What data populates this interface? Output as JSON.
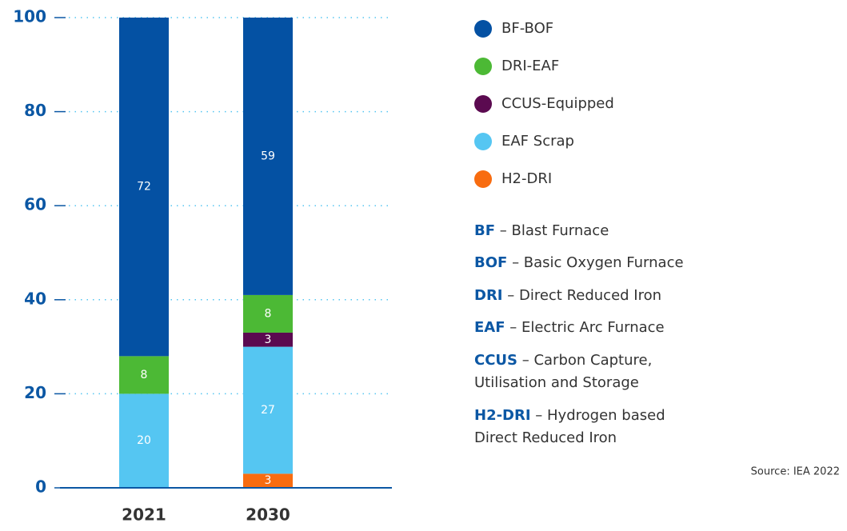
{
  "chart_data": {
    "type": "stacked_bar",
    "categories": [
      "2021",
      "2030"
    ],
    "series": [
      {
        "name": "BF-BOF",
        "color": "#0451a3",
        "values": [
          72,
          59
        ]
      },
      {
        "name": "DRI-EAF",
        "color": "#4cb935",
        "values": [
          8,
          8
        ]
      },
      {
        "name": "CCUS-Equipped",
        "color": "#5b0a50",
        "values": [
          0,
          3
        ]
      },
      {
        "name": "EAF Scrap",
        "color": "#55c6f2",
        "values": [
          20,
          27
        ]
      },
      {
        "name": "H2-DRI",
        "color": "#f86c10",
        "values": [
          0,
          3
        ]
      }
    ],
    "ylim": [
      0,
      100
    ],
    "yticks": [
      0,
      20,
      40,
      60,
      80,
      100
    ],
    "grid": true,
    "glossary": [
      {
        "term": "BF",
        "definition": [
          "– Blast Furnace"
        ]
      },
      {
        "term": "BOF",
        "definition": [
          "– Basic Oxygen Furnace"
        ]
      },
      {
        "term": "DRI",
        "definition": [
          "– Direct Reduced Iron"
        ]
      },
      {
        "term": "EAF",
        "definition": [
          "– Electric Arc Furnace"
        ]
      },
      {
        "term": "CCUS",
        "definition": [
          "– Carbon Capture,",
          "Utilisation and Storage"
        ]
      },
      {
        "term": "H2-DRI",
        "definition": [
          "– Hydrogen based",
          "Direct Reduced Iron"
        ]
      }
    ],
    "source": "Source: IEA 2022"
  }
}
